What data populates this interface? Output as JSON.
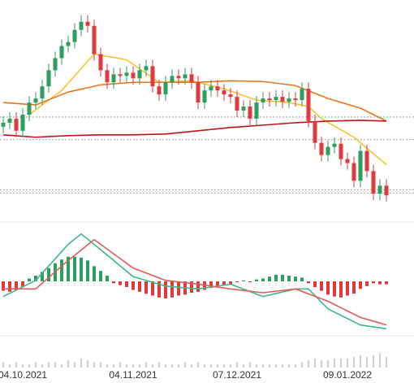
{
  "chart_data": [
    {
      "type": "candlestick",
      "categories": [
        null,
        null,
        null,
        "04.10.2021",
        null,
        null,
        null,
        null,
        null,
        null,
        null,
        null,
        null,
        null,
        null,
        null,
        null,
        null,
        null,
        null,
        "04.11.2021",
        null,
        null,
        null,
        null,
        null,
        null,
        null,
        null,
        null,
        null,
        null,
        null,
        null,
        null,
        null,
        "07.12.2021",
        null,
        null,
        null,
        null,
        null,
        null,
        null,
        null,
        null,
        null,
        null,
        null,
        null,
        null,
        null,
        null,
        "09.01.2022",
        null,
        null,
        null,
        null,
        null,
        null
      ],
      "open": [
        11.5,
        12,
        12.5,
        11,
        13,
        14.5,
        15,
        16.5,
        18.5,
        20,
        21.5,
        22,
        23.5,
        24.5,
        24,
        20.5,
        18.5,
        17,
        18,
        17.8,
        18.2,
        17.5,
        18.5,
        19,
        16.5,
        15.5,
        17,
        17.8,
        17.5,
        18,
        17,
        14.5,
        16,
        16.5,
        16,
        15.5,
        15.2,
        13.5,
        14,
        12.5,
        14.5,
        15,
        14.8,
        15.2,
        14.6,
        15,
        14.8,
        16.2,
        12.2,
        9.5,
        8,
        9,
        9.4,
        7.5,
        7,
        4.8,
        8.5,
        6,
        3.2,
        4.2
      ],
      "high": [
        12.8,
        13.3,
        13.3,
        13.8,
        15.3,
        15.8,
        17.3,
        19.3,
        20.8,
        22.3,
        22.8,
        24.3,
        25.3,
        25.3,
        24.8,
        21.3,
        19.3,
        18.8,
        18.8,
        19,
        19,
        19.3,
        19.8,
        19.8,
        17.3,
        17.8,
        18.6,
        18.6,
        18.8,
        18.8,
        17.8,
        16.8,
        17.3,
        17.3,
        16.8,
        16.3,
        16,
        14.8,
        14.8,
        15.3,
        15.8,
        15.8,
        16,
        16,
        15.8,
        15.8,
        17,
        17,
        13,
        10.3,
        9.8,
        10.2,
        10.2,
        8.3,
        7.8,
        9.3,
        9.3,
        6.8,
        5,
        5
      ],
      "low": [
        10.7,
        11.2,
        10.2,
        10.2,
        12.2,
        13.7,
        14.2,
        15.7,
        17.7,
        19.2,
        20.7,
        21.2,
        22.7,
        23.2,
        19.7,
        17.7,
        16.2,
        16.2,
        17,
        17,
        16.7,
        16.7,
        17.7,
        15.7,
        14.7,
        14.7,
        16.2,
        16.7,
        16.7,
        16.2,
        13.7,
        13.7,
        15.2,
        15.2,
        14.7,
        14.4,
        12.7,
        12.7,
        11.7,
        11.7,
        13.7,
        14,
        14,
        13.8,
        13.8,
        14,
        14,
        11.4,
        8.7,
        7.2,
        7.2,
        8.2,
        6.7,
        6.2,
        4,
        4,
        5.2,
        2.4,
        2.4,
        2.2
      ],
      "close": [
        12,
        12.5,
        11,
        13,
        14.5,
        15,
        16.5,
        18.5,
        20,
        21.5,
        22,
        23.5,
        24.5,
        24,
        20.5,
        18.5,
        17,
        18,
        17.8,
        18.2,
        17.5,
        18.5,
        19,
        16.5,
        15.5,
        17,
        17.8,
        17.5,
        18,
        17,
        14.5,
        16,
        16.5,
        16,
        15.5,
        15.2,
        13.5,
        14,
        12.5,
        14.5,
        15,
        14.8,
        15.2,
        14.6,
        15,
        14.8,
        16.2,
        12.2,
        9.5,
        8,
        9,
        9.4,
        7.5,
        7,
        4.8,
        8.5,
        6,
        3.2,
        4.2,
        3
      ],
      "up_color": "#2e9e5e",
      "down_color": "#e0393e",
      "series": [
        {
          "color": "#f5c431",
          "x": [
            4,
            9,
            14,
            19,
            24,
            29,
            34,
            39,
            44,
            47,
            49,
            54,
            59
          ],
          "values": [
            13,
            16,
            20.5,
            19.8,
            17,
            17.2,
            16.2,
            14.8,
            14.5,
            14,
            12.5,
            10.2,
            6.8
          ]
        },
        {
          "color": "#e8761c",
          "x": [
            0,
            5,
            10,
            15,
            20,
            25,
            30,
            35,
            40,
            45,
            50,
            55,
            59
          ],
          "values": [
            14.5,
            14.2,
            15.8,
            16.7,
            17,
            17,
            17,
            17.2,
            17.1,
            16.6,
            15,
            13.8,
            12.2
          ]
        },
        {
          "color": "#c4121c",
          "x": [
            0,
            5,
            10,
            15,
            20,
            25,
            30,
            35,
            40,
            45,
            50,
            55,
            59
          ],
          "values": [
            10.5,
            10.2,
            10.4,
            10.5,
            10.5,
            10.6,
            11,
            11.4,
            11.7,
            12,
            12.2,
            12.3,
            12.2
          ]
        }
      ],
      "levels": [
        12.7,
        9.9,
        3.7,
        3.3
      ],
      "ylim": [
        0,
        27
      ]
    },
    {
      "type": "macd",
      "values": [
        -1,
        -1.1,
        -0.9,
        -0.6,
        0.3,
        0.6,
        1,
        1.4,
        1.9,
        2.3,
        2.6,
        2.6,
        2.5,
        2.2,
        1.6,
        1.1,
        0.6,
        -0.2,
        -0.4,
        -0.6,
        -0.9,
        -1.1,
        -1.3,
        -1.5,
        -1.7,
        -1.8,
        -1.7,
        -1.5,
        -1.4,
        -1.2,
        -1.1,
        -0.9,
        -0.7,
        -0.5,
        -0.4,
        -0.3,
        -0.1,
        0.1,
        -0.1,
        0.2,
        0.3,
        0.5,
        0.7,
        0.7,
        0.6,
        0.5,
        0.4,
        -0.2,
        -0.6,
        -1,
        -1.4,
        -1.6,
        -1.7,
        -1.5,
        -1.3,
        -0.8,
        -0.5,
        -0.2,
        -0.3,
        -0.3
      ],
      "up_color": "#2e9e5e",
      "down_color": "#e0393e",
      "series": [
        {
          "color": "#3cb98a",
          "x": [
            0,
            5,
            10,
            12,
            14,
            20,
            25,
            30,
            35,
            40,
            45,
            47,
            50,
            55,
            59
          ],
          "values": [
            -1.6,
            0.1,
            3.9,
            5,
            3.9,
            0.5,
            -0.5,
            -0.8,
            -0.3,
            -1.6,
            -0.8,
            -0.8,
            -2.9,
            -4.6,
            -5
          ]
        },
        {
          "color": "#e05a5a",
          "x": [
            0,
            5,
            10,
            14,
            20,
            25,
            30,
            35,
            40,
            45,
            50,
            55,
            59
          ],
          "values": [
            -0.8,
            -0.8,
            2.2,
            4.4,
            1.4,
            0.1,
            -0.3,
            -0.8,
            -1.2,
            -0.8,
            -2.1,
            -3.8,
            -4.6
          ]
        }
      ],
      "ylim": [
        -6,
        6
      ]
    },
    {
      "type": "volume",
      "color": "#d0d0d0",
      "values": [
        3,
        2,
        3,
        2,
        2,
        3,
        2,
        3,
        3,
        2,
        4,
        3,
        5,
        4,
        3,
        3,
        2,
        2,
        3,
        2,
        2,
        2,
        3,
        2,
        3,
        2,
        2,
        2,
        3,
        2,
        3,
        2,
        2,
        2,
        2,
        2,
        3,
        2,
        3,
        2,
        2,
        2,
        2,
        2,
        2,
        2,
        3,
        4,
        5,
        4,
        4,
        5,
        5,
        5,
        6,
        7,
        6,
        7,
        8,
        6
      ],
      "ylim": [
        0,
        10
      ]
    }
  ]
}
